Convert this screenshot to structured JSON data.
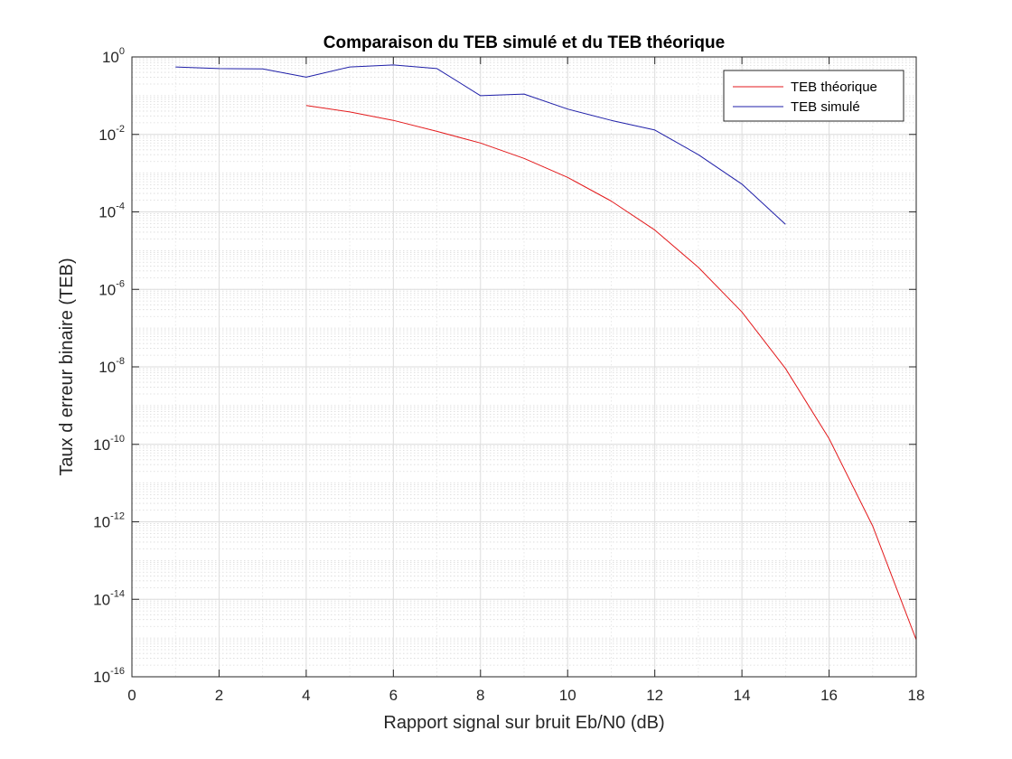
{
  "chart_data": {
    "type": "line",
    "title": "Comparaison du TEB simulé et du TEB théorique",
    "xlabel": "Rapport signal sur bruit Eb/N0 (dB)",
    "ylabel": "Taux d erreur binaire (TEB)",
    "xlim": [
      0,
      18
    ],
    "ylim": [
      1e-16,
      1
    ],
    "yscale": "log",
    "grid": true,
    "minor_grid": true,
    "legend_position": "top-right",
    "x_ticks": [
      0,
      2,
      4,
      6,
      8,
      10,
      12,
      14,
      16,
      18
    ],
    "y_tick_exponents": [
      0,
      -2,
      -4,
      -6,
      -8,
      -10,
      -12,
      -14,
      -16
    ],
    "y_tick_base": "10",
    "series": [
      {
        "name": "TEB théorique",
        "color": "#e31a1c",
        "x": [
          4,
          5,
          6,
          7,
          8,
          9,
          10,
          11,
          12,
          13,
          14,
          15,
          16,
          17,
          18
        ],
        "y": [
          0.056,
          0.038,
          0.023,
          0.012,
          0.006,
          0.0024,
          0.00078,
          0.00019,
          3.4e-05,
          3.7e-06,
          2.6e-07,
          9.1e-09,
          1.4e-10,
          7.8e-13,
          9e-16
        ]
      },
      {
        "name": "TEB simulé",
        "color": "#1f1fa8",
        "x": [
          1,
          2,
          3,
          4,
          5,
          6,
          7,
          8,
          9,
          10,
          11,
          12,
          13,
          14,
          15
        ],
        "y": [
          0.55,
          0.5,
          0.49,
          0.3,
          0.55,
          0.62,
          0.5,
          0.1,
          0.11,
          0.045,
          0.023,
          0.013,
          0.003,
          0.00052,
          4.8e-05
        ]
      }
    ]
  }
}
